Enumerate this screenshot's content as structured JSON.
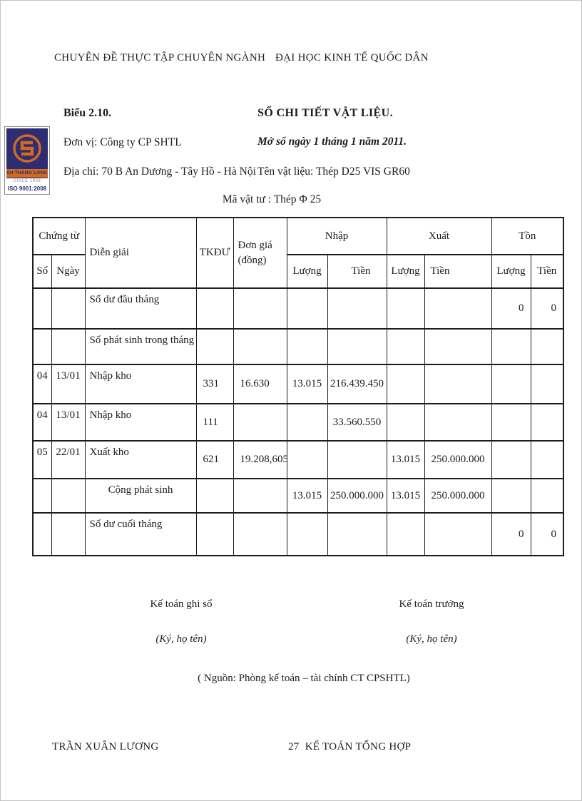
{
  "page": {
    "top_left": "CHUYÊN ĐỀ THỰC TẬP CHUYÊN NGÀNH",
    "top_right": "ĐẠI HỌC KINH TẾ QUỐC DÂN",
    "bottom_left": "TRẦN XUÂN LƯƠNG",
    "bottom_page_number": "27",
    "bottom_right": "KẾ TOÁN TỔNG HỢP"
  },
  "logo": {
    "company": "SH THANG LONG",
    "since": "SINCE 1958",
    "iso": "ISO 9001:2008",
    "navy_color": "#2d2d73",
    "orange_color": "#cf6a1f"
  },
  "doc": {
    "figure_label": "Biểu 2.10.",
    "title": "SỔ CHI TIẾT VẬT LIỆU.",
    "unit": "Đơn vị: Công ty CP SHTL",
    "open_date": "Mở sổ ngày 1 tháng 1 năm 2011.",
    "address": "Địa chỉ: 70 B An Dương - Tây Hồ - Hà Nội",
    "material_name": "Tên vật liệu: Thép D25 VIS GR60",
    "material_code": "Mã vật tư   : Thép Φ 25"
  },
  "table": {
    "headers": {
      "chung_tu": "Chứng từ",
      "so": "Số",
      "ngay": "Ngày",
      "dien_giai": "Diễn giải",
      "tkdu": "TKĐƯ",
      "don_gia": "Đơn giá (đồng)",
      "nhap": "Nhập",
      "xuat": "Xuất",
      "ton": "Tồn",
      "luong": "Lượng",
      "tien": "Tiền"
    },
    "rows": [
      {
        "cells": [
          "",
          "",
          "Số dư đầu tháng",
          "",
          "",
          "",
          "",
          "",
          "",
          "0",
          "0"
        ]
      },
      {
        "cells": [
          "",
          "",
          "Số phát sinh trong tháng",
          "",
          "",
          "",
          "",
          "",
          "",
          "",
          ""
        ]
      },
      {
        "cells": [
          "04",
          "13/01",
          "Nhập kho",
          "331",
          "16.630",
          "13.015",
          "216.439.450",
          "",
          "",
          "",
          ""
        ]
      },
      {
        "cells": [
          "04",
          "13/01",
          "Nhập kho",
          "111",
          "",
          "",
          "33.560.550",
          "",
          "",
          "",
          ""
        ]
      },
      {
        "cells": [
          "05",
          "22/01",
          "Xuất kho",
          "621",
          "19.208,605",
          "",
          "",
          "13.015",
          "250.000.000",
          "",
          ""
        ]
      },
      {
        "cells": [
          "",
          "",
          "Cộng phát sinh",
          "",
          "",
          "13.015",
          "250.000.000",
          "13.015",
          "250.000.000",
          "",
          ""
        ],
        "center_desc": true
      },
      {
        "cells": [
          "",
          "",
          "Số dư cuối tháng",
          "",
          "",
          "",
          "",
          "",
          "",
          "0",
          "0"
        ]
      }
    ]
  },
  "signatures": {
    "left_title": "Kế toán ghi sổ",
    "right_title": "Kế toán trưởng",
    "note": "(Ký, họ tên)",
    "source": "( Nguồn: Phòng kế toán – tài chính CT CPSHTL)"
  }
}
